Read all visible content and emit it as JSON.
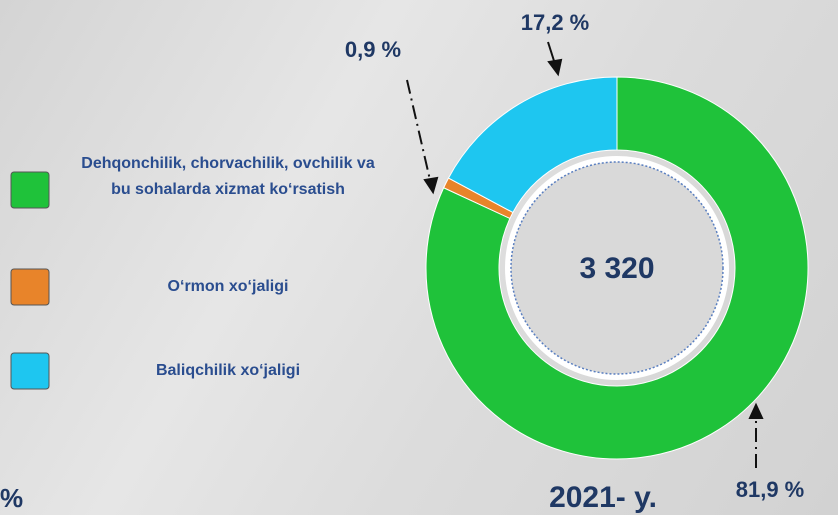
{
  "chart_data": {
    "type": "pie",
    "donut": true,
    "categories": [
      "Dehqonchilik, chorvachilik, ovchilik va bu sohalarda xizmat ko‘rsatish",
      "O‘rmon xo‘jaligi",
      "Baliqchilik xo‘jaligi"
    ],
    "values": [
      81.9,
      0.9,
      17.2
    ],
    "value_labels": [
      "81,9 %",
      "0,9 %",
      "17,2 %"
    ],
    "colors": [
      "#1fc23a",
      "#e8842a",
      "#1ec6f0"
    ],
    "center_label": "3 320",
    "year_label": "2021- y.",
    "annotations": [
      "%"
    ]
  }
}
